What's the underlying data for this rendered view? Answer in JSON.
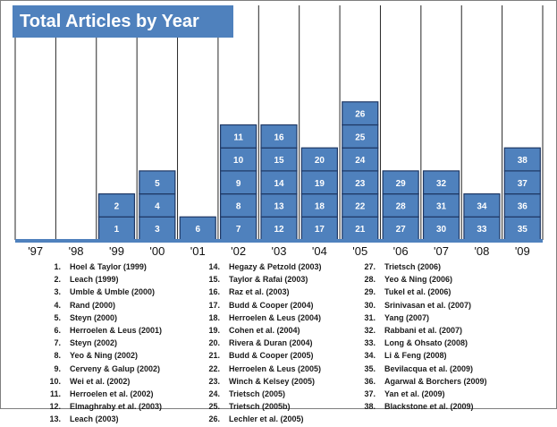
{
  "chart_data": {
    "type": "bar",
    "title": "Total Articles by Year",
    "categories": [
      "'97",
      "'98",
      "'99",
      "'00",
      "'01",
      "'02",
      "'03",
      "'04",
      "'05",
      "'06",
      "'07",
      "'08",
      "'09"
    ],
    "values": [
      0,
      0,
      2,
      3,
      1,
      5,
      5,
      4,
      6,
      3,
      3,
      2,
      4
    ],
    "stacked_labels": [
      [],
      [],
      [
        "1",
        "2"
      ],
      [
        "3",
        "4",
        "5"
      ],
      [
        "6"
      ],
      [
        "7",
        "8",
        "9",
        "10",
        "11"
      ],
      [
        "12",
        "13",
        "14",
        "15",
        "16"
      ],
      [
        "17",
        "18",
        "19",
        "20"
      ],
      [
        "21",
        "22",
        "23",
        "24",
        "25",
        "26"
      ],
      [
        "27",
        "28",
        "29"
      ],
      [
        "30",
        "31",
        "32"
      ],
      [
        "33",
        "34"
      ],
      [
        "35",
        "36",
        "37",
        "38"
      ]
    ],
    "ylim": [
      0,
      6.5
    ],
    "grid": true,
    "colors": {
      "bar": "#4f81bd",
      "bar_border": "#1f3864",
      "title_bg": "#4f81bd",
      "baseline": "#4f81bd"
    }
  },
  "references": [
    {
      "num": "1.",
      "text": "Hoel & Taylor (1999)"
    },
    {
      "num": "2.",
      "text": "Leach (1999)"
    },
    {
      "num": "3.",
      "text": "Umble & Umble (2000)"
    },
    {
      "num": "4.",
      "text": "Rand (2000)"
    },
    {
      "num": "5.",
      "text": "Steyn (2000)"
    },
    {
      "num": "6.",
      "text": "Herroelen & Leus (2001)"
    },
    {
      "num": "7.",
      "text": "Steyn (2002)"
    },
    {
      "num": "8.",
      "text": "Yeo & Ning (2002)"
    },
    {
      "num": "9.",
      "text": "Cerveny & Galup (2002)"
    },
    {
      "num": "10.",
      "text": "Wei et al. (2002)"
    },
    {
      "num": "11.",
      "text": "Herroelen et al. (2002)"
    },
    {
      "num": "12.",
      "text": "Elmaghraby et al. (2003)"
    },
    {
      "num": "13.",
      "text": "Leach (2003)"
    },
    {
      "num": "14.",
      "text": "Hegazy & Petzold (2003)"
    },
    {
      "num": "15.",
      "text": "Taylor & Rafai (2003)"
    },
    {
      "num": "16.",
      "text": "Raz et al. (2003)"
    },
    {
      "num": "17.",
      "text": "Budd & Cooper (2004)"
    },
    {
      "num": "18.",
      "text": "Herroelen & Leus  (2004)"
    },
    {
      "num": "19.",
      "text": "Cohen et al. (2004)"
    },
    {
      "num": "20.",
      "text": "Rivera & Duran (2004)"
    },
    {
      "num": "21.",
      "text": "Budd & Cooper (2005)"
    },
    {
      "num": "22.",
      "text": "Herroelen & Leus (2005)"
    },
    {
      "num": "23.",
      "text": "Winch & Kelsey (2005)"
    },
    {
      "num": "24.",
      "text": "Trietsch (2005)"
    },
    {
      "num": "25.",
      "text": "Trietsch (2005b)"
    },
    {
      "num": "26.",
      "text": "Lechler et al. (2005)"
    },
    {
      "num": "27.",
      "text": "Trietsch (2006)"
    },
    {
      "num": "28.",
      "text": "Yeo & Ning (2006)"
    },
    {
      "num": "29.",
      "text": "Tukel et al. (2006)"
    },
    {
      "num": "30.",
      "text": "Srinivasan et al. (2007)"
    },
    {
      "num": "31.",
      "text": "Yang (2007)"
    },
    {
      "num": "32.",
      "text": "Rabbani et al. (2007)"
    },
    {
      "num": "33.",
      "text": "Long & Ohsato (2008)"
    },
    {
      "num": "34.",
      "text": "Li & Feng (2008)"
    },
    {
      "num": "35.",
      "text": "Bevilacqua et al. (2009)"
    },
    {
      "num": "36.",
      "text": "Agarwal & Borchers (2009)"
    },
    {
      "num": "37.",
      "text": "Yan et al. (2009)"
    },
    {
      "num": "38.",
      "text": "Blackstone et al. (2009)"
    }
  ]
}
